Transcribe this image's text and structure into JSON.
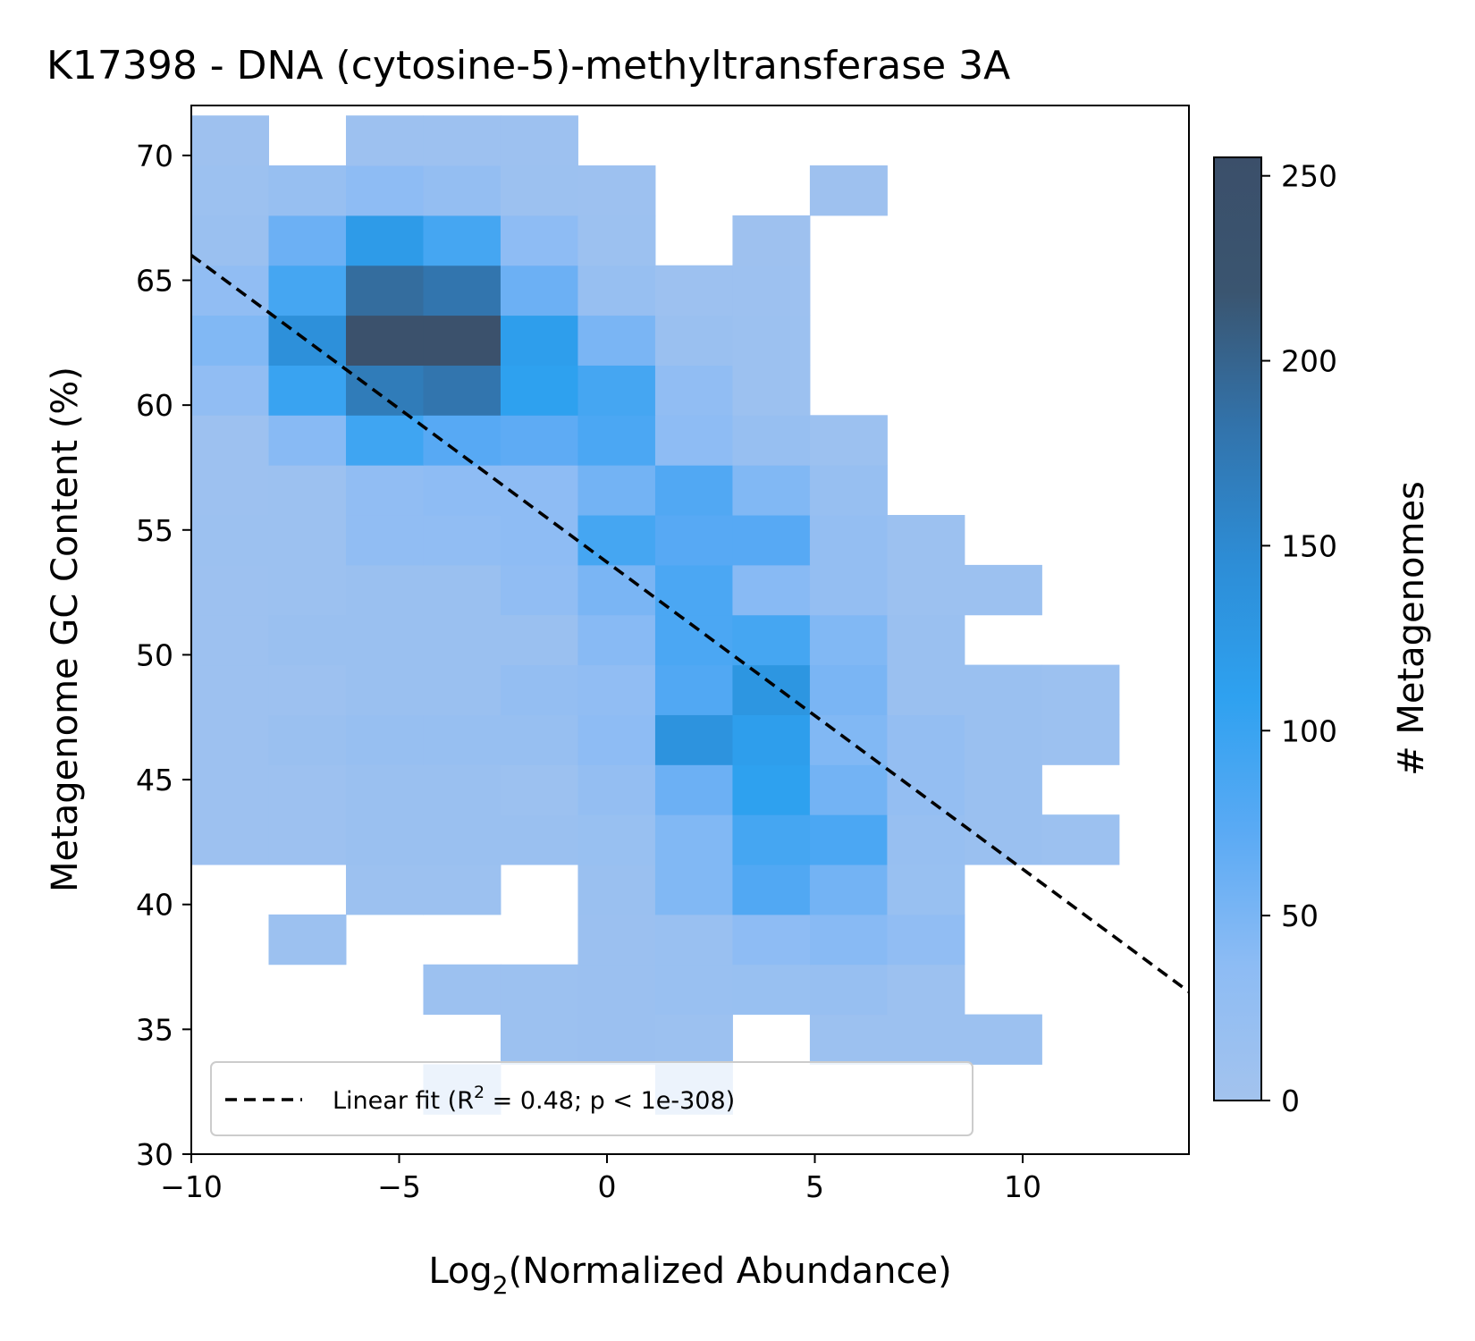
{
  "chart_data": {
    "type": "heatmap",
    "title": "K17398 - DNA (cytosine-5)-methyltransferase 3A",
    "xlabel_main": "Log",
    "xlabel_sub": "2",
    "xlabel_rest": "(Normalized Abundance)",
    "ylabel": "Metagenome GC Content (%)",
    "colorbar_label": "# Metagenomes",
    "xlim": [
      -10,
      14
    ],
    "ylim": [
      30,
      72
    ],
    "xticks": [
      -10,
      -5,
      0,
      5,
      10
    ],
    "xtick_labels": [
      "−10",
      "−5",
      "0",
      "5",
      "10"
    ],
    "yticks": [
      30,
      35,
      40,
      45,
      50,
      55,
      60,
      65,
      70
    ],
    "ytick_labels": [
      "30",
      "35",
      "40",
      "45",
      "50",
      "55",
      "60",
      "65",
      "70"
    ],
    "cbar_range": [
      0,
      255
    ],
    "cbar_ticks": [
      0,
      50,
      100,
      150,
      200,
      250
    ],
    "cbar_tick_labels": [
      "0",
      "50",
      "100",
      "150",
      "200",
      "250"
    ],
    "x_bin_edges": [
      -10,
      -8.14,
      -6.28,
      -4.42,
      -2.56,
      -0.7,
      1.16,
      3.02,
      4.88,
      6.74,
      8.6,
      10.46,
      12.32
    ],
    "y_bin_edges": [
      31.6,
      33.6,
      35.6,
      37.6,
      39.6,
      41.6,
      43.6,
      45.6,
      47.6,
      49.6,
      51.6,
      53.6,
      55.6,
      57.6,
      59.6,
      61.6,
      63.6,
      65.6,
      67.6,
      69.6,
      71.6
    ],
    "counts": [
      [
        0,
        0,
        0,
        8,
        0,
        0,
        4,
        0,
        0,
        0,
        0,
        0
      ],
      [
        0,
        0,
        0,
        0,
        12,
        14,
        12,
        0,
        12,
        12,
        12,
        0
      ],
      [
        0,
        0,
        0,
        12,
        12,
        14,
        16,
        18,
        20,
        12,
        0,
        0
      ],
      [
        0,
        12,
        0,
        0,
        0,
        14,
        16,
        35,
        40,
        30,
        0,
        0
      ],
      [
        0,
        0,
        12,
        12,
        0,
        15,
        45,
        80,
        55,
        18,
        0,
        0
      ],
      [
        10,
        10,
        15,
        15,
        15,
        18,
        45,
        90,
        85,
        20,
        15,
        12
      ],
      [
        10,
        10,
        15,
        15,
        12,
        25,
        60,
        110,
        55,
        25,
        15,
        0
      ],
      [
        10,
        15,
        20,
        20,
        20,
        35,
        135,
        115,
        45,
        25,
        15,
        12
      ],
      [
        10,
        10,
        15,
        15,
        25,
        30,
        80,
        130,
        50,
        15,
        15,
        12
      ],
      [
        10,
        15,
        15,
        15,
        15,
        40,
        85,
        90,
        45,
        15,
        0,
        0
      ],
      [
        10,
        12,
        15,
        15,
        30,
        50,
        85,
        40,
        25,
        12,
        12,
        0
      ],
      [
        12,
        12,
        30,
        30,
        35,
        90,
        75,
        75,
        25,
        12,
        0,
        0
      ],
      [
        10,
        12,
        30,
        35,
        35,
        55,
        80,
        45,
        20,
        0,
        0,
        0
      ],
      [
        10,
        40,
        95,
        75,
        70,
        85,
        35,
        20,
        12,
        0,
        0,
        0
      ],
      [
        30,
        100,
        170,
        180,
        110,
        90,
        30,
        12,
        0,
        0,
        0,
        0
      ],
      [
        45,
        140,
        245,
        240,
        115,
        50,
        15,
        12,
        0,
        0,
        0,
        0
      ],
      [
        30,
        90,
        190,
        180,
        60,
        20,
        10,
        10,
        0,
        0,
        0,
        0
      ],
      [
        15,
        60,
        120,
        90,
        35,
        12,
        0,
        8,
        0,
        0,
        0,
        0
      ],
      [
        12,
        20,
        35,
        25,
        12,
        10,
        0,
        0,
        8,
        0,
        0,
        0
      ],
      [
        8,
        0,
        10,
        10,
        10,
        0,
        0,
        0,
        0,
        0,
        0,
        0
      ]
    ],
    "linear_fit": {
      "slope": -1.2292,
      "intercept": 53.71
    },
    "legend": {
      "line_label": "Linear fit (R",
      "sup": "2",
      "line_label_rest": " = 0.48; p < 1e-308)",
      "location": "lower-left"
    },
    "colormap": [
      "#a3c3ee",
      "#8dbcf4",
      "#5aaaf4",
      "#2ea1f0",
      "#2d8dd6",
      "#3273ab",
      "#3a5570",
      "#3b4f6a"
    ]
  }
}
